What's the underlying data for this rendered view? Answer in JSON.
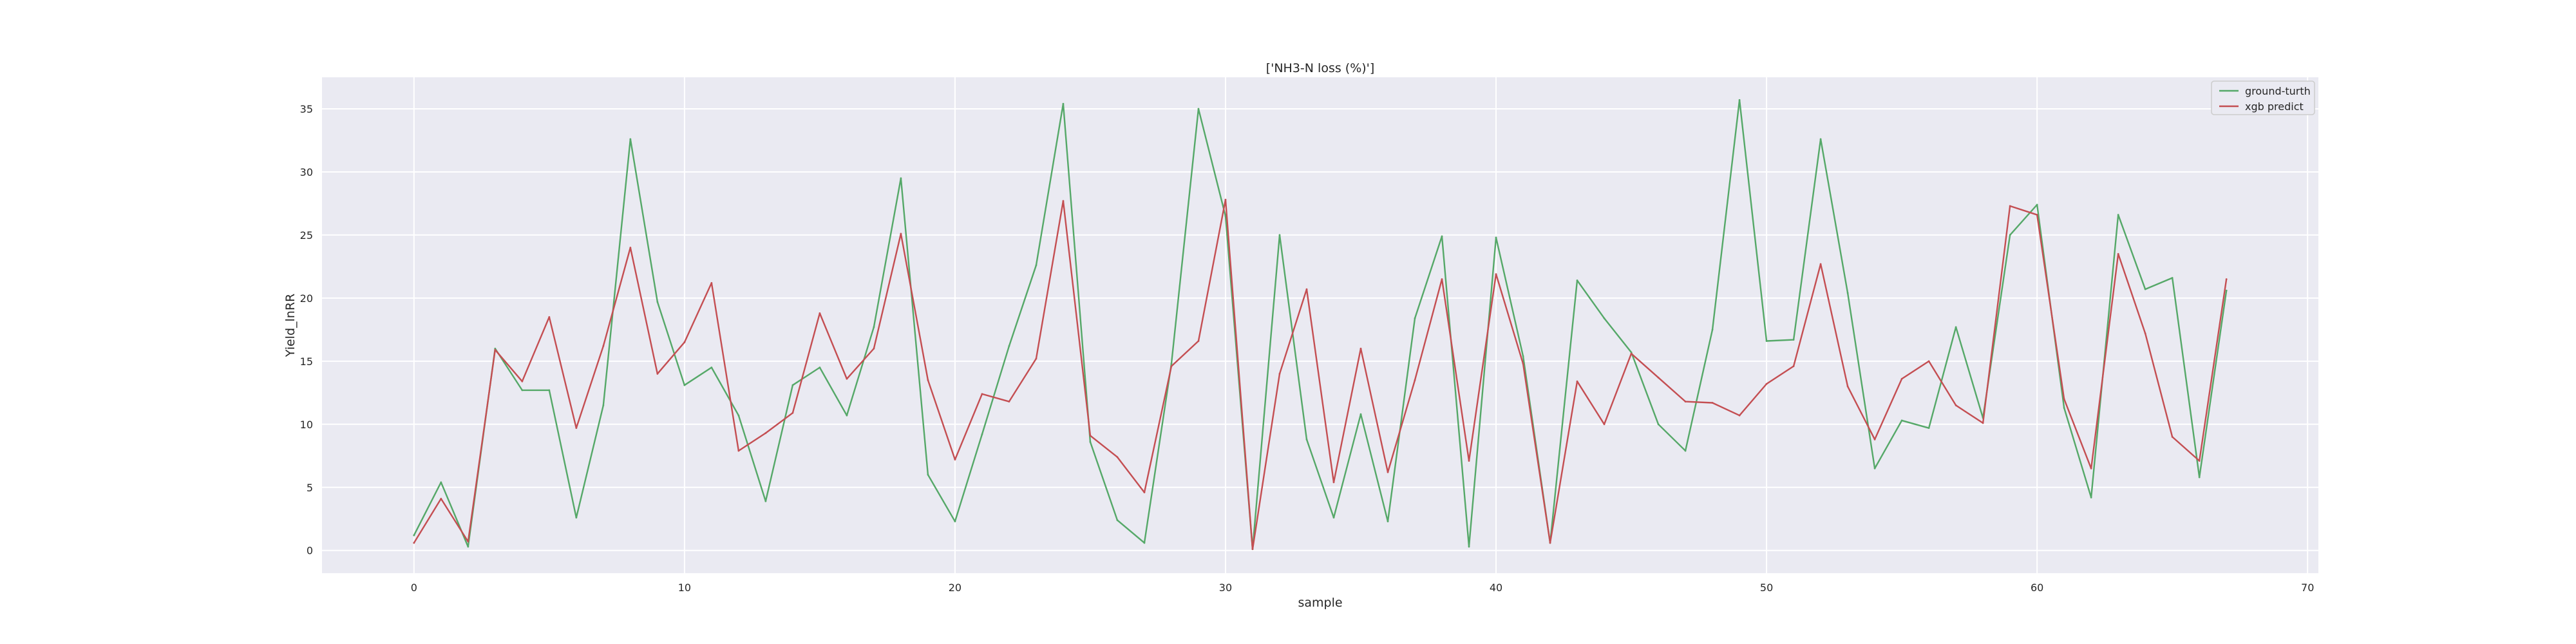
{
  "chart_data": {
    "type": "line",
    "title": "['NH3-N loss (%)']",
    "xlabel": "sample",
    "ylabel": "Yield_lnRR",
    "xlim": [
      -3.4,
      70.4
    ],
    "ylim": [
      -1.8,
      37.5
    ],
    "x_ticks": [
      0,
      10,
      20,
      30,
      40,
      50,
      60,
      70
    ],
    "y_ticks": [
      0,
      5,
      10,
      15,
      20,
      25,
      30,
      35
    ],
    "grid": true,
    "legend_position": "top-right",
    "x": [
      0,
      1,
      2,
      3,
      4,
      5,
      6,
      7,
      8,
      9,
      10,
      11,
      12,
      13,
      14,
      15,
      16,
      17,
      18,
      19,
      20,
      21,
      22,
      23,
      24,
      25,
      26,
      27,
      28,
      29,
      30,
      31,
      32,
      33,
      34,
      35,
      36,
      37,
      38,
      39,
      40,
      41,
      42,
      43,
      44,
      45,
      46,
      47,
      48,
      49,
      50,
      51,
      52,
      53,
      54,
      55,
      56,
      57,
      58,
      59,
      60,
      61,
      62,
      63,
      64,
      65,
      66,
      67
    ],
    "series": [
      {
        "name": "ground-turth",
        "color": "#55a868",
        "values": [
          1.2,
          5.4,
          0.3,
          16.0,
          12.7,
          12.7,
          2.6,
          11.5,
          32.6,
          19.7,
          13.1,
          14.5,
          10.7,
          3.9,
          13.1,
          14.5,
          10.7,
          17.7,
          29.5,
          6.0,
          2.3,
          9.2,
          16.2,
          22.6,
          35.4,
          8.6,
          2.4,
          0.6,
          14.8,
          35.0,
          26.5,
          0.1,
          25.0,
          8.8,
          2.6,
          10.8,
          2.3,
          18.4,
          24.9,
          0.3,
          24.8,
          15.4,
          0.6,
          21.4,
          18.4,
          15.7,
          10.0,
          7.9,
          17.5,
          35.7,
          16.6,
          16.7,
          32.6,
          20.4,
          6.5,
          10.3,
          9.7,
          17.7,
          10.5,
          25.0,
          27.4,
          11.3,
          4.2,
          26.6,
          20.7,
          21.6,
          5.8,
          20.6
        ]
      },
      {
        "name": "xgb predict",
        "color": "#c44e52",
        "values": [
          0.6,
          4.1,
          0.7,
          15.9,
          13.4,
          18.5,
          9.7,
          16.2,
          24.0,
          14.0,
          16.5,
          21.2,
          7.9,
          9.3,
          10.9,
          18.8,
          13.6,
          16.0,
          25.1,
          13.5,
          7.2,
          12.4,
          11.8,
          15.2,
          27.7,
          9.1,
          7.4,
          4.6,
          14.6,
          16.6,
          27.8,
          0.1,
          14.0,
          20.7,
          5.4,
          16.0,
          6.2,
          13.5,
          21.5,
          7.1,
          21.9,
          14.8,
          0.6,
          13.4,
          10.0,
          15.6,
          13.7,
          11.8,
          11.7,
          10.7,
          13.2,
          14.6,
          22.7,
          13.0,
          8.8,
          13.6,
          15.0,
          11.5,
          10.1,
          27.3,
          26.6,
          12.0,
          6.5,
          23.5,
          17.2,
          9.0,
          7.1,
          21.5
        ]
      }
    ]
  }
}
